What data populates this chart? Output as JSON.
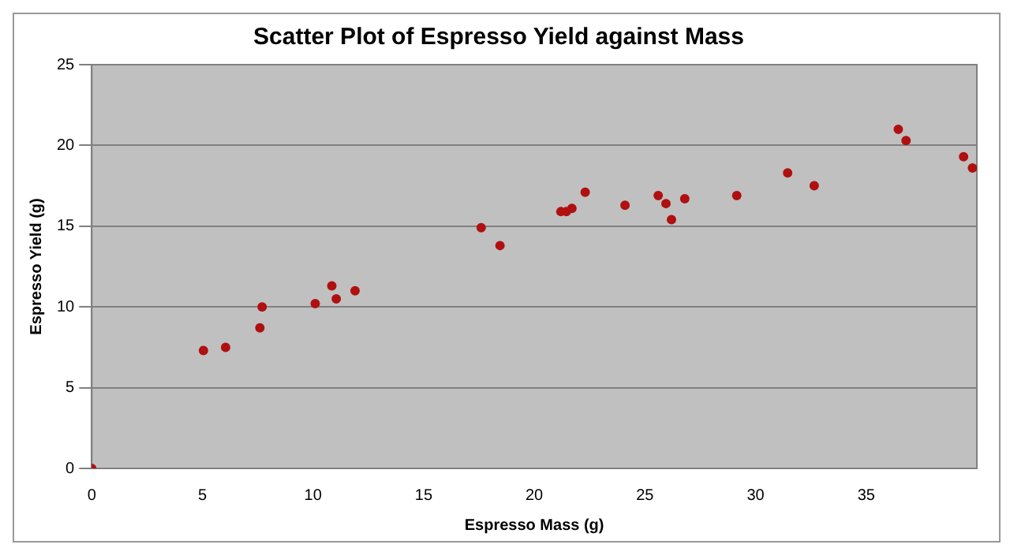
{
  "chart_data": {
    "type": "scatter",
    "title": "Scatter Plot of Espresso Yield against Mass",
    "xlabel": "Espresso Mass (g)",
    "ylabel": "Espresso Yield (g)",
    "xlim": [
      0,
      40
    ],
    "xticks": [
      0,
      5,
      10,
      15,
      20,
      25,
      30,
      35
    ],
    "ylim": [
      0,
      25
    ],
    "yticks": [
      0,
      5,
      10,
      15,
      20,
      25
    ],
    "grid": "y",
    "legend": false,
    "marker": "circle",
    "series": [
      {
        "color": "#b01010",
        "x": [
          0,
          5.05,
          6.05,
          7.6,
          7.7,
          10.1,
          10.85,
          11.05,
          11.9,
          17.6,
          18.45,
          21.2,
          21.45,
          21.7,
          22.3,
          24.1,
          25.6,
          25.95,
          26.2,
          26.8,
          29.15,
          31.45,
          32.65,
          36.45,
          36.8,
          39.4,
          39.8
        ],
        "values": [
          0,
          7.3,
          7.5,
          8.7,
          10.0,
          10.2,
          11.3,
          10.5,
          11.0,
          14.9,
          13.8,
          15.9,
          15.9,
          16.1,
          17.1,
          16.3,
          16.9,
          16.4,
          15.4,
          16.7,
          16.9,
          18.3,
          17.5,
          21.0,
          20.3,
          19.3,
          18.6
        ]
      }
    ]
  }
}
